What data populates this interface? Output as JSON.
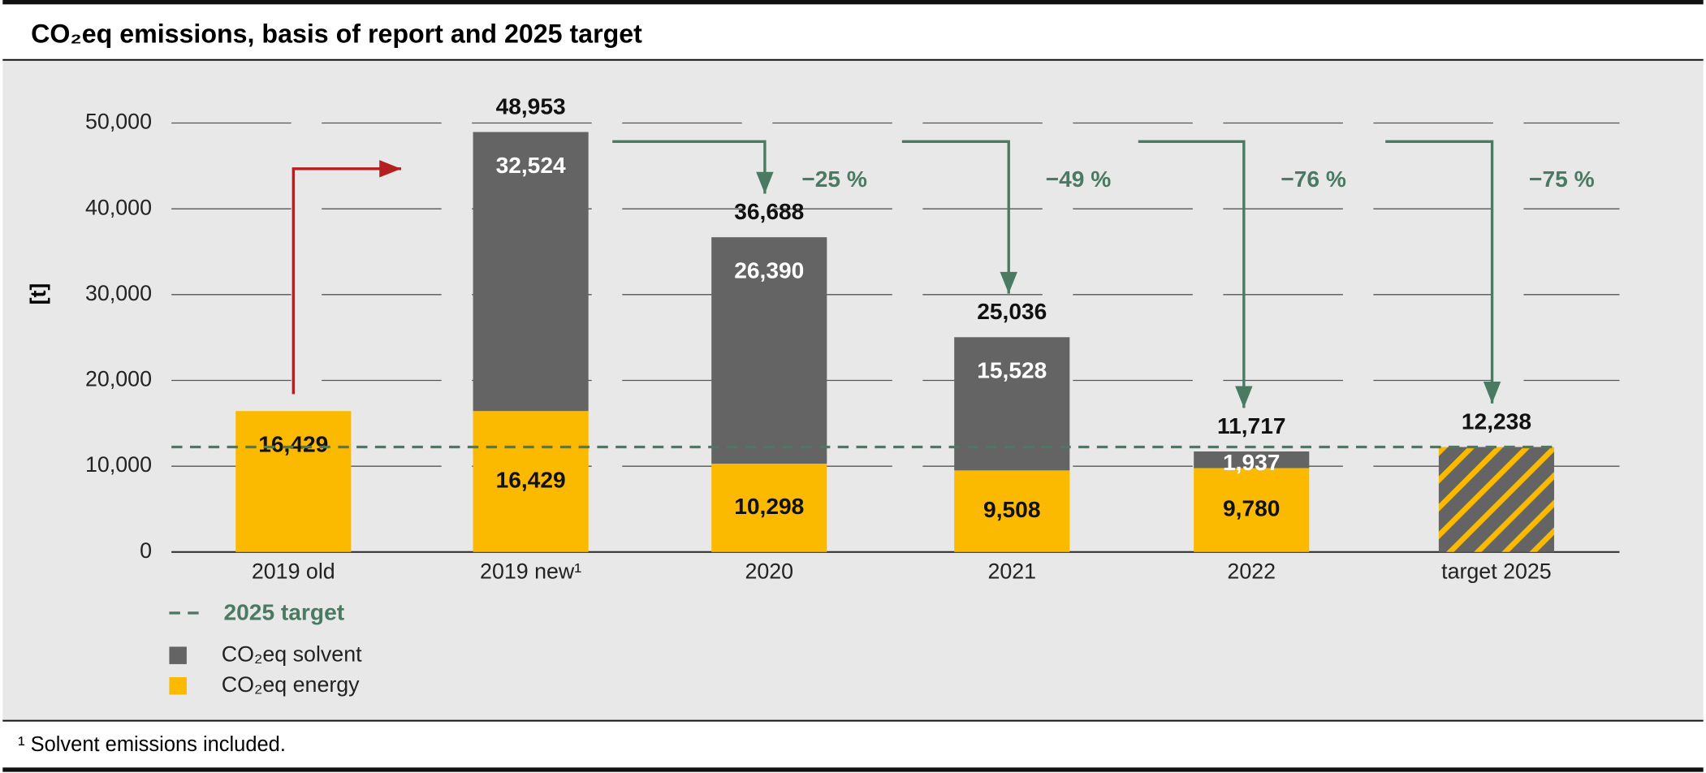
{
  "chart_data": {
    "type": "stacked_bar",
    "title": "CO₂eq emissions, basis of report and 2025 target",
    "y_label": "[t]",
    "categories": [
      "2019 old",
      "2019 new¹",
      "2020",
      "2021",
      "2022",
      "target 2025"
    ],
    "series": [
      {
        "name": "CO₂eq energy",
        "color": "#fbb900",
        "values": [
          16429,
          16429,
          10298,
          9508,
          9780,
          null
        ],
        "value_labels": [
          "16,429",
          "16,429",
          "10,298",
          "9,508",
          "9,780",
          null
        ]
      },
      {
        "name": "CO₂eq solvent",
        "color": "#646464",
        "values": [
          null,
          32524,
          26390,
          15528,
          1937,
          null
        ],
        "value_labels": [
          null,
          "32,524",
          "26,390",
          "15,528",
          "1,937",
          null
        ]
      },
      {
        "color": "#646464",
        "pattern_color": "#fbb900",
        "values": [
          null,
          null,
          null,
          null,
          null,
          12238
        ]
      }
    ],
    "totals": [
      null,
      48953,
      36688,
      25036,
      11717,
      12238
    ],
    "total_labels": [
      null,
      "48,953",
      "36,688",
      "25,036",
      "11,717",
      "12,238"
    ],
    "target_line": {
      "name": "2025 target",
      "value": 12238,
      "color": "#4a7a62"
    },
    "changes": [
      {
        "value": -25,
        "label": "−25 %"
      },
      {
        "value": -49,
        "label": "−49 %"
      },
      {
        "value": -76,
        "label": "−76 %"
      },
      {
        "value": -75,
        "label": "−75 %"
      }
    ],
    "ylim": [
      0,
      50000
    ],
    "yticks": [
      0,
      {
        "value": 10000,
        "label": "10,000"
      },
      {
        "value": 20000,
        "label": "20,000"
      },
      {
        "value": 30000,
        "label": "30,000"
      },
      {
        "value": 40000,
        "label": "40,000"
      },
      {
        "value": 50000,
        "label": "50,000"
      }
    ],
    "grid": true,
    "footnote": "¹ Solvent emissions included."
  }
}
